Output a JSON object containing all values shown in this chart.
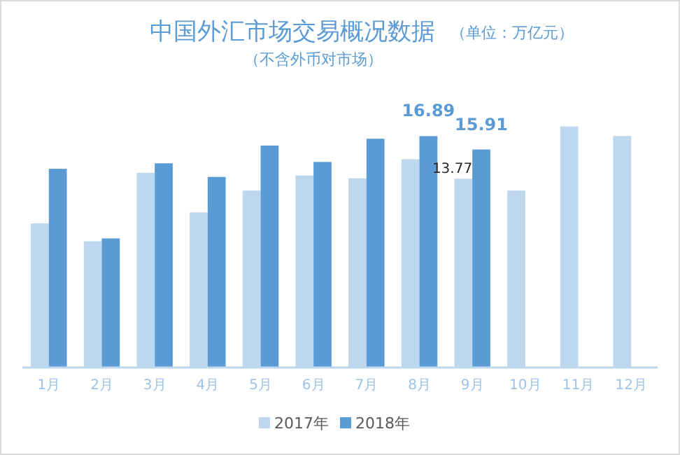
{
  "chart_data": {
    "type": "bar",
    "title": "中国外汇市场交易概况数据",
    "subtitle": "（不含外币对市场）",
    "annotations": [
      "（单位：万亿元）"
    ],
    "categories": [
      "1月",
      "2月",
      "3月",
      "4月",
      "5月",
      "6月",
      "7月",
      "8月",
      "9月",
      "10月",
      "11月",
      "12月"
    ],
    "series": [
      {
        "name": "2017年",
        "color": "#bdd7ee",
        "values": [
          10.5,
          9.2,
          14.2,
          11.3,
          12.9,
          14.0,
          13.8,
          15.2,
          13.77,
          12.9,
          17.6,
          16.9
        ],
        "value_labels": [
          null,
          null,
          null,
          null,
          null,
          null,
          null,
          null,
          "13.77",
          null,
          null,
          null
        ]
      },
      {
        "name": "2018年",
        "color": "#5b9bd5",
        "values": [
          14.5,
          9.4,
          14.9,
          13.9,
          16.2,
          15.0,
          16.7,
          16.89,
          15.91,
          null,
          null,
          null
        ],
        "value_labels": [
          null,
          null,
          null,
          null,
          null,
          null,
          null,
          "16.89",
          "15.91",
          null,
          null,
          null
        ]
      }
    ],
    "legend": "bottom"
  }
}
